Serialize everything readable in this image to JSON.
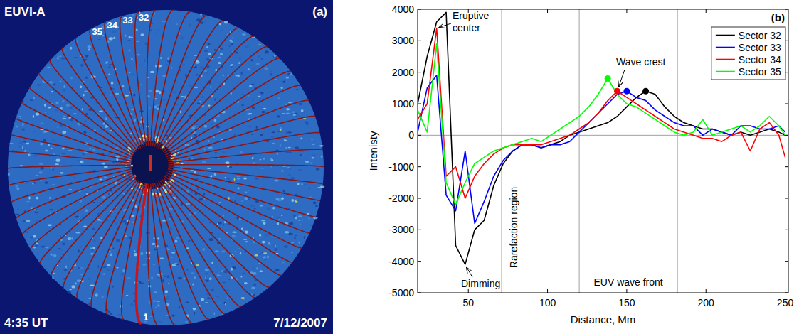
{
  "image": {
    "instrument": "EUVI-A",
    "panel_label": "(a)",
    "time": "4:35 UT",
    "date": "7/12/2007",
    "sector_labels": [
      "32",
      "33",
      "34",
      "35",
      "1"
    ]
  },
  "chart_data": {
    "type": "line",
    "panel_label": "(b)",
    "x_label": "Distance, Mm",
    "y_label": "Intenisty",
    "xlim": [
      18,
      252
    ],
    "ylim": [
      -5000,
      4000
    ],
    "xticks": [
      50,
      100,
      150,
      200,
      250
    ],
    "yticks": [
      -5000,
      -4000,
      -3000,
      -2000,
      -1000,
      0,
      1000,
      2000,
      3000,
      4000
    ],
    "grid": false,
    "legend": "upper right",
    "hlines": [
      0
    ],
    "vlines": [
      71,
      120,
      182
    ],
    "annotations": [
      "Eruptive center",
      "Dimming",
      "Wave crest",
      "Rarefaction region",
      "EUV wave front"
    ],
    "x": [
      18,
      24,
      30,
      36,
      42,
      48,
      54,
      60,
      66,
      72,
      78,
      84,
      90,
      96,
      102,
      108,
      114,
      120,
      126,
      132,
      138,
      144,
      150,
      156,
      162,
      168,
      174,
      180,
      186,
      192,
      198,
      204,
      210,
      216,
      222,
      228,
      234,
      240,
      246,
      250
    ],
    "series": [
      {
        "name": "Sector 32",
        "color": "#000000",
        "line_style": "solid",
        "marker": "none",
        "values": [
          1000,
          2500,
          3600,
          3900,
          -3500,
          -4100,
          -3000,
          -2700,
          -1600,
          -900,
          -500,
          -300,
          -300,
          -400,
          -300,
          -200,
          0,
          100,
          200,
          300,
          400,
          600,
          900,
          1200,
          1400,
          1300,
          900,
          600,
          400,
          300,
          200,
          200,
          100,
          0,
          100,
          0,
          100,
          200,
          100,
          0
        ],
        "crest": {
          "x": 162,
          "value": 1400
        }
      },
      {
        "name": "Sector 33",
        "color": "#0000ff",
        "line_style": "solid",
        "marker": "none",
        "values": [
          100,
          1500,
          1900,
          -1900,
          -2400,
          -500,
          -2800,
          -2100,
          -1300,
          -800,
          -500,
          -300,
          -300,
          -400,
          -300,
          -300,
          -200,
          100,
          400,
          700,
          1000,
          1300,
          1400,
          1200,
          1100,
          800,
          600,
          400,
          300,
          300,
          0,
          200,
          100,
          0,
          300,
          300,
          200,
          200,
          300,
          100
        ],
        "crest": {
          "x": 150,
          "value": 1400
        }
      },
      {
        "name": "Sector 34",
        "color": "#ff0000",
        "line_style": "solid",
        "marker": "none",
        "values": [
          500,
          1000,
          3400,
          -1300,
          -1000,
          -2000,
          -1300,
          -900,
          -600,
          -400,
          -300,
          -300,
          -300,
          -300,
          -200,
          -100,
          0,
          200,
          400,
          700,
          1100,
          1400,
          1200,
          1000,
          800,
          600,
          400,
          200,
          100,
          0,
          -100,
          -100,
          -200,
          0,
          100,
          -500,
          200,
          400,
          0,
          -700
        ],
        "crest": {
          "x": 144,
          "value": 1400
        }
      },
      {
        "name": "Sector 35",
        "color": "#00ff00",
        "line_style": "solid",
        "marker": "none",
        "values": [
          800,
          100,
          2900,
          -1500,
          -2200,
          -1500,
          -900,
          -700,
          -500,
          -400,
          -300,
          -200,
          -100,
          -200,
          0,
          200,
          400,
          600,
          900,
          1300,
          1800,
          1300,
          1000,
          900,
          700,
          500,
          300,
          100,
          0,
          100,
          500,
          0,
          100,
          200,
          300,
          100,
          300,
          600,
          300,
          0
        ],
        "crest": {
          "x": 138,
          "value": 1800
        }
      }
    ]
  }
}
